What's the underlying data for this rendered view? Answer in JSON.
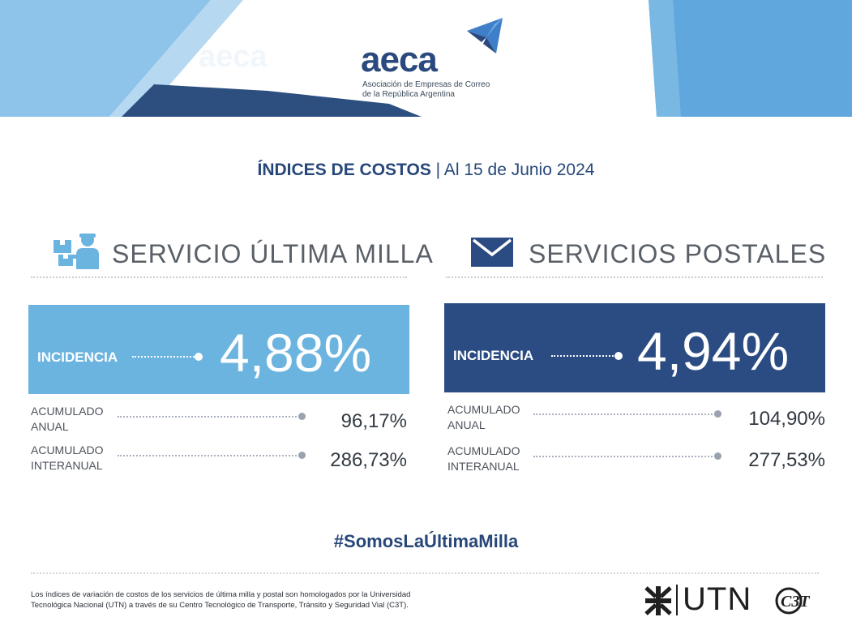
{
  "header": {
    "logo_name": "aeca",
    "logo_subtitle_line1": "Asociación de Empresas de Correo",
    "logo_subtitle_line2": "de la República Argentina"
  },
  "title": {
    "bold": "ÍNDICES DE COSTOS",
    "rest": " | Al 15 de Junio 2024"
  },
  "sections": [
    {
      "icon": "delivery-person-icon",
      "title": "SERVICIO ÚLTIMA MILLA",
      "color": "#6cb4e0",
      "incidencia_label": "INCIDENCIA",
      "incidencia_value": "4,88%",
      "rows": [
        {
          "label_line1": "ACUMULADO",
          "label_line2": "ANUAL",
          "value": "96,17%"
        },
        {
          "label_line1": "ACUMULADO",
          "label_line2": "INTERANUAL",
          "value": "286,73%"
        }
      ]
    },
    {
      "icon": "envelope-icon",
      "title": "SERVICIOS POSTALES",
      "color": "#2b4c82",
      "incidencia_label": "INCIDENCIA",
      "incidencia_value": "4,94%",
      "rows": [
        {
          "label_line1": "ACUMULADO",
          "label_line2": "ANUAL",
          "value": "104,90%"
        },
        {
          "label_line1": "ACUMULADO",
          "label_line2": "INTERANUAL",
          "value": "277,53%"
        }
      ]
    }
  ],
  "hashtag": "#SomosLaÚltimaMilla",
  "footnote_line1": "Los índices de variación de costos de los servicios de última milla y postal son homologados por la Universidad",
  "footnote_line2": "Tecnológica Nacional (UTN) a través de su Centro Tecnológico de Transporte, Tránsito y Seguridad Vial (C3T).",
  "footer_logos": {
    "utn_text": "UTN",
    "c3t_text": "C3T"
  },
  "colors": {
    "brand_dark": "#27477a",
    "brand_light": "#6cb4e0",
    "header_light": "#8fc4ea",
    "header_mid": "#5fa7dc"
  }
}
